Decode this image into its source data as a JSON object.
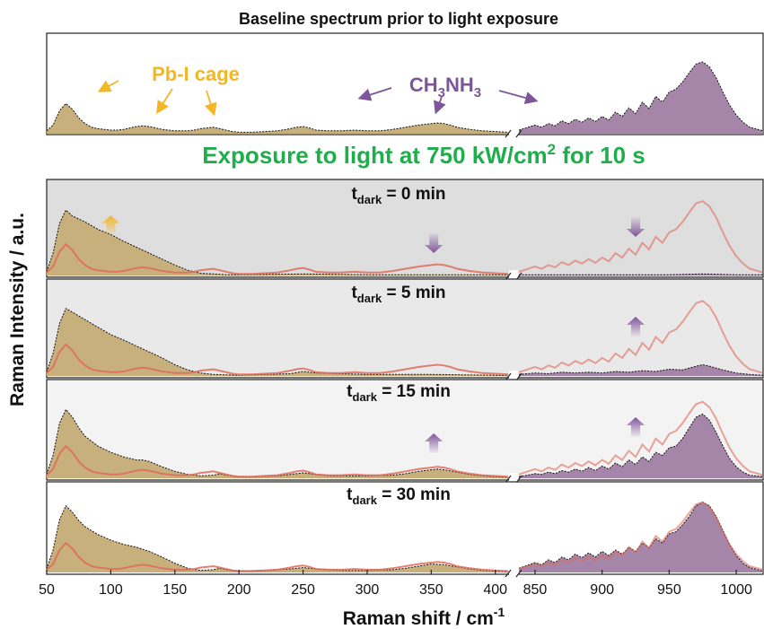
{
  "chart_data": {
    "type": "area",
    "title": "Baseline spectrum prior to light exposure",
    "subtitle": {
      "pre": "Exposure to light at 750 kW/cm",
      "sup": "2",
      "post": " for 10 s"
    },
    "xlabel": {
      "pre": "Raman shift / cm",
      "sup": "-1"
    },
    "ylabel": "Raman Intensity / a.u.",
    "x_segments": [
      {
        "range": [
          50,
          410
        ],
        "ticks": [
          50,
          100,
          150,
          200,
          250,
          300,
          350,
          400
        ]
      },
      {
        "range": [
          838,
          1020
        ],
        "ticks": [
          850,
          900,
          950,
          1000
        ]
      }
    ],
    "annotations": {
      "pbi": "Pb-I cage",
      "ch3nh3": {
        "a": "CH",
        "s1": "3",
        "b": "NH",
        "s2": "3"
      }
    },
    "colors": {
      "pbi_fill": "#c8b07c",
      "ch3_fill": "#a586a8",
      "baseline_trace": "#e06a5a",
      "arrow_orange": "#f3b625",
      "arrow_purple": "#7f559a",
      "subtitle_green": "#1fae4b"
    },
    "baseline_low": {
      "x": [
        50,
        55,
        60,
        65,
        70,
        75,
        80,
        85,
        90,
        95,
        100,
        105,
        110,
        115,
        120,
        125,
        130,
        135,
        140,
        145,
        150,
        155,
        160,
        165,
        170,
        175,
        180,
        185,
        190,
        195,
        200,
        210,
        220,
        230,
        240,
        245,
        250,
        255,
        260,
        270,
        280,
        290,
        300,
        310,
        320,
        330,
        340,
        345,
        350,
        355,
        360,
        365,
        370,
        380,
        390,
        400,
        410
      ],
      "y": [
        0.04,
        0.12,
        0.32,
        0.42,
        0.34,
        0.22,
        0.14,
        0.09,
        0.07,
        0.06,
        0.05,
        0.05,
        0.06,
        0.08,
        0.1,
        0.11,
        0.1,
        0.08,
        0.06,
        0.05,
        0.04,
        0.04,
        0.04,
        0.05,
        0.07,
        0.08,
        0.09,
        0.07,
        0.05,
        0.03,
        0.02,
        0.02,
        0.03,
        0.04,
        0.07,
        0.09,
        0.1,
        0.08,
        0.05,
        0.04,
        0.04,
        0.05,
        0.04,
        0.04,
        0.06,
        0.09,
        0.12,
        0.13,
        0.14,
        0.15,
        0.14,
        0.12,
        0.09,
        0.06,
        0.04,
        0.03,
        0.02
      ]
    },
    "baseline_high": {
      "x": [
        838,
        850,
        855,
        860,
        865,
        870,
        875,
        880,
        885,
        890,
        895,
        900,
        905,
        910,
        915,
        920,
        925,
        930,
        935,
        940,
        945,
        950,
        955,
        960,
        965,
        970,
        975,
        980,
        985,
        990,
        995,
        1000,
        1005,
        1010,
        1020
      ],
      "y": [
        0.05,
        0.12,
        0.09,
        0.14,
        0.11,
        0.18,
        0.14,
        0.2,
        0.16,
        0.22,
        0.17,
        0.24,
        0.19,
        0.3,
        0.24,
        0.36,
        0.28,
        0.44,
        0.35,
        0.52,
        0.44,
        0.58,
        0.62,
        0.72,
        0.85,
        0.97,
        1.0,
        0.93,
        0.78,
        0.58,
        0.4,
        0.26,
        0.16,
        0.09,
        0.04
      ]
    },
    "panels": [
      {
        "label": {
          "t": "t",
          "sub": "dark",
          "val": " = 0 min"
        },
        "background": "#dedede",
        "low": {
          "x": [
            50,
            55,
            60,
            65,
            70,
            80,
            90,
            100,
            110,
            120,
            130,
            140,
            150,
            160,
            170,
            180,
            190,
            200,
            250,
            300,
            350,
            400,
            410
          ],
          "y": [
            0.05,
            0.3,
            0.7,
            0.88,
            0.8,
            0.72,
            0.62,
            0.55,
            0.46,
            0.38,
            0.3,
            0.22,
            0.14,
            0.07,
            0.03,
            0.02,
            0.01,
            0.01,
            0.02,
            0.01,
            0.01,
            0.01,
            0.01
          ]
        },
        "high": {
          "x": [
            838,
            900,
            950,
            975,
            1000,
            1020
          ],
          "y": [
            0.01,
            0.01,
            0.01,
            0.02,
            0.01,
            0.01
          ]
        },
        "arrows": [
          {
            "x": 100,
            "dir": "up",
            "color": "orange"
          },
          {
            "x": 352,
            "dir": "down",
            "color": "purple"
          },
          {
            "x": 925,
            "dir": "down",
            "color": "purple"
          }
        ]
      },
      {
        "label": {
          "t": "t",
          "sub": "dark",
          "val": " = 5 min"
        },
        "background": "#e9e9e9",
        "low": {
          "x": [
            50,
            55,
            60,
            65,
            70,
            80,
            90,
            100,
            110,
            120,
            130,
            140,
            150,
            160,
            170,
            180,
            200,
            240,
            250,
            260,
            300,
            350,
            400,
            410
          ],
          "y": [
            0.05,
            0.3,
            0.7,
            0.9,
            0.85,
            0.75,
            0.65,
            0.55,
            0.48,
            0.4,
            0.32,
            0.24,
            0.15,
            0.08,
            0.04,
            0.02,
            0.01,
            0.03,
            0.06,
            0.04,
            0.02,
            0.02,
            0.01,
            0.01
          ]
        },
        "high": {
          "x": [
            838,
            850,
            860,
            870,
            880,
            890,
            900,
            910,
            920,
            930,
            940,
            950,
            960,
            970,
            975,
            980,
            990,
            1000,
            1010,
            1020
          ],
          "y": [
            0.02,
            0.04,
            0.03,
            0.05,
            0.04,
            0.05,
            0.04,
            0.06,
            0.05,
            0.07,
            0.06,
            0.09,
            0.08,
            0.13,
            0.15,
            0.13,
            0.08,
            0.04,
            0.02,
            0.01
          ]
        },
        "arrows": [
          {
            "x": 925,
            "dir": "up",
            "color": "purple"
          }
        ]
      },
      {
        "label": {
          "t": "t",
          "sub": "dark",
          "val": " = 15 min"
        },
        "background": "#f3f3f3",
        "low": {
          "x": [
            50,
            55,
            60,
            65,
            70,
            75,
            80,
            90,
            100,
            110,
            120,
            125,
            130,
            140,
            150,
            160,
            170,
            180,
            185,
            190,
            200,
            210,
            230,
            240,
            250,
            260,
            270,
            280,
            300,
            320,
            330,
            340,
            350,
            355,
            360,
            370,
            380,
            390,
            400,
            410
          ],
          "y": [
            0.05,
            0.3,
            0.72,
            0.9,
            0.8,
            0.66,
            0.55,
            0.42,
            0.34,
            0.28,
            0.24,
            0.24,
            0.22,
            0.15,
            0.09,
            0.05,
            0.03,
            0.04,
            0.06,
            0.04,
            0.02,
            0.02,
            0.03,
            0.05,
            0.07,
            0.05,
            0.03,
            0.03,
            0.03,
            0.04,
            0.06,
            0.09,
            0.11,
            0.12,
            0.11,
            0.08,
            0.05,
            0.03,
            0.02,
            0.01
          ]
        },
        "high": {
          "x": [
            838,
            850,
            855,
            860,
            865,
            870,
            875,
            880,
            885,
            890,
            895,
            900,
            905,
            910,
            915,
            920,
            925,
            930,
            935,
            940,
            945,
            950,
            955,
            960,
            965,
            970,
            975,
            980,
            985,
            990,
            995,
            1000,
            1005,
            1010,
            1020
          ],
          "y": [
            0.02,
            0.06,
            0.05,
            0.08,
            0.06,
            0.1,
            0.08,
            0.12,
            0.09,
            0.14,
            0.1,
            0.16,
            0.12,
            0.2,
            0.15,
            0.24,
            0.18,
            0.28,
            0.22,
            0.34,
            0.3,
            0.4,
            0.42,
            0.52,
            0.66,
            0.8,
            0.84,
            0.76,
            0.6,
            0.42,
            0.26,
            0.15,
            0.08,
            0.04,
            0.02
          ]
        },
        "arrows": [
          {
            "x": 352,
            "dir": "up",
            "color": "purple"
          },
          {
            "x": 925,
            "dir": "up",
            "color": "purple"
          }
        ]
      },
      {
        "label": {
          "t": "t",
          "sub": "dark",
          "val": " = 30 min"
        },
        "background": "#ffffff",
        "low": {
          "x": [
            50,
            55,
            60,
            65,
            70,
            75,
            80,
            90,
            100,
            110,
            120,
            130,
            140,
            150,
            160,
            170,
            180,
            185,
            190,
            200,
            220,
            240,
            250,
            260,
            280,
            300,
            320,
            330,
            340,
            350,
            360,
            370,
            380,
            390,
            400,
            410
          ],
          "y": [
            0.05,
            0.32,
            0.75,
            0.95,
            0.86,
            0.74,
            0.65,
            0.54,
            0.46,
            0.4,
            0.36,
            0.3,
            0.22,
            0.13,
            0.06,
            0.03,
            0.04,
            0.06,
            0.04,
            0.02,
            0.03,
            0.05,
            0.07,
            0.05,
            0.03,
            0.03,
            0.04,
            0.06,
            0.09,
            0.12,
            0.11,
            0.08,
            0.05,
            0.03,
            0.02,
            0.01
          ]
        },
        "high": {
          "x": [
            838,
            850,
            855,
            860,
            865,
            870,
            875,
            880,
            885,
            890,
            895,
            900,
            905,
            910,
            915,
            920,
            925,
            930,
            935,
            940,
            945,
            950,
            955,
            960,
            965,
            970,
            975,
            980,
            985,
            990,
            995,
            1000,
            1005,
            1010,
            1020
          ],
          "y": [
            0.06,
            0.14,
            0.11,
            0.18,
            0.14,
            0.22,
            0.18,
            0.26,
            0.21,
            0.28,
            0.22,
            0.3,
            0.24,
            0.32,
            0.26,
            0.36,
            0.3,
            0.42,
            0.35,
            0.48,
            0.42,
            0.55,
            0.58,
            0.68,
            0.8,
            0.95,
            1.0,
            0.95,
            0.8,
            0.6,
            0.4,
            0.24,
            0.13,
            0.07,
            0.02
          ]
        },
        "arrows": []
      }
    ]
  }
}
